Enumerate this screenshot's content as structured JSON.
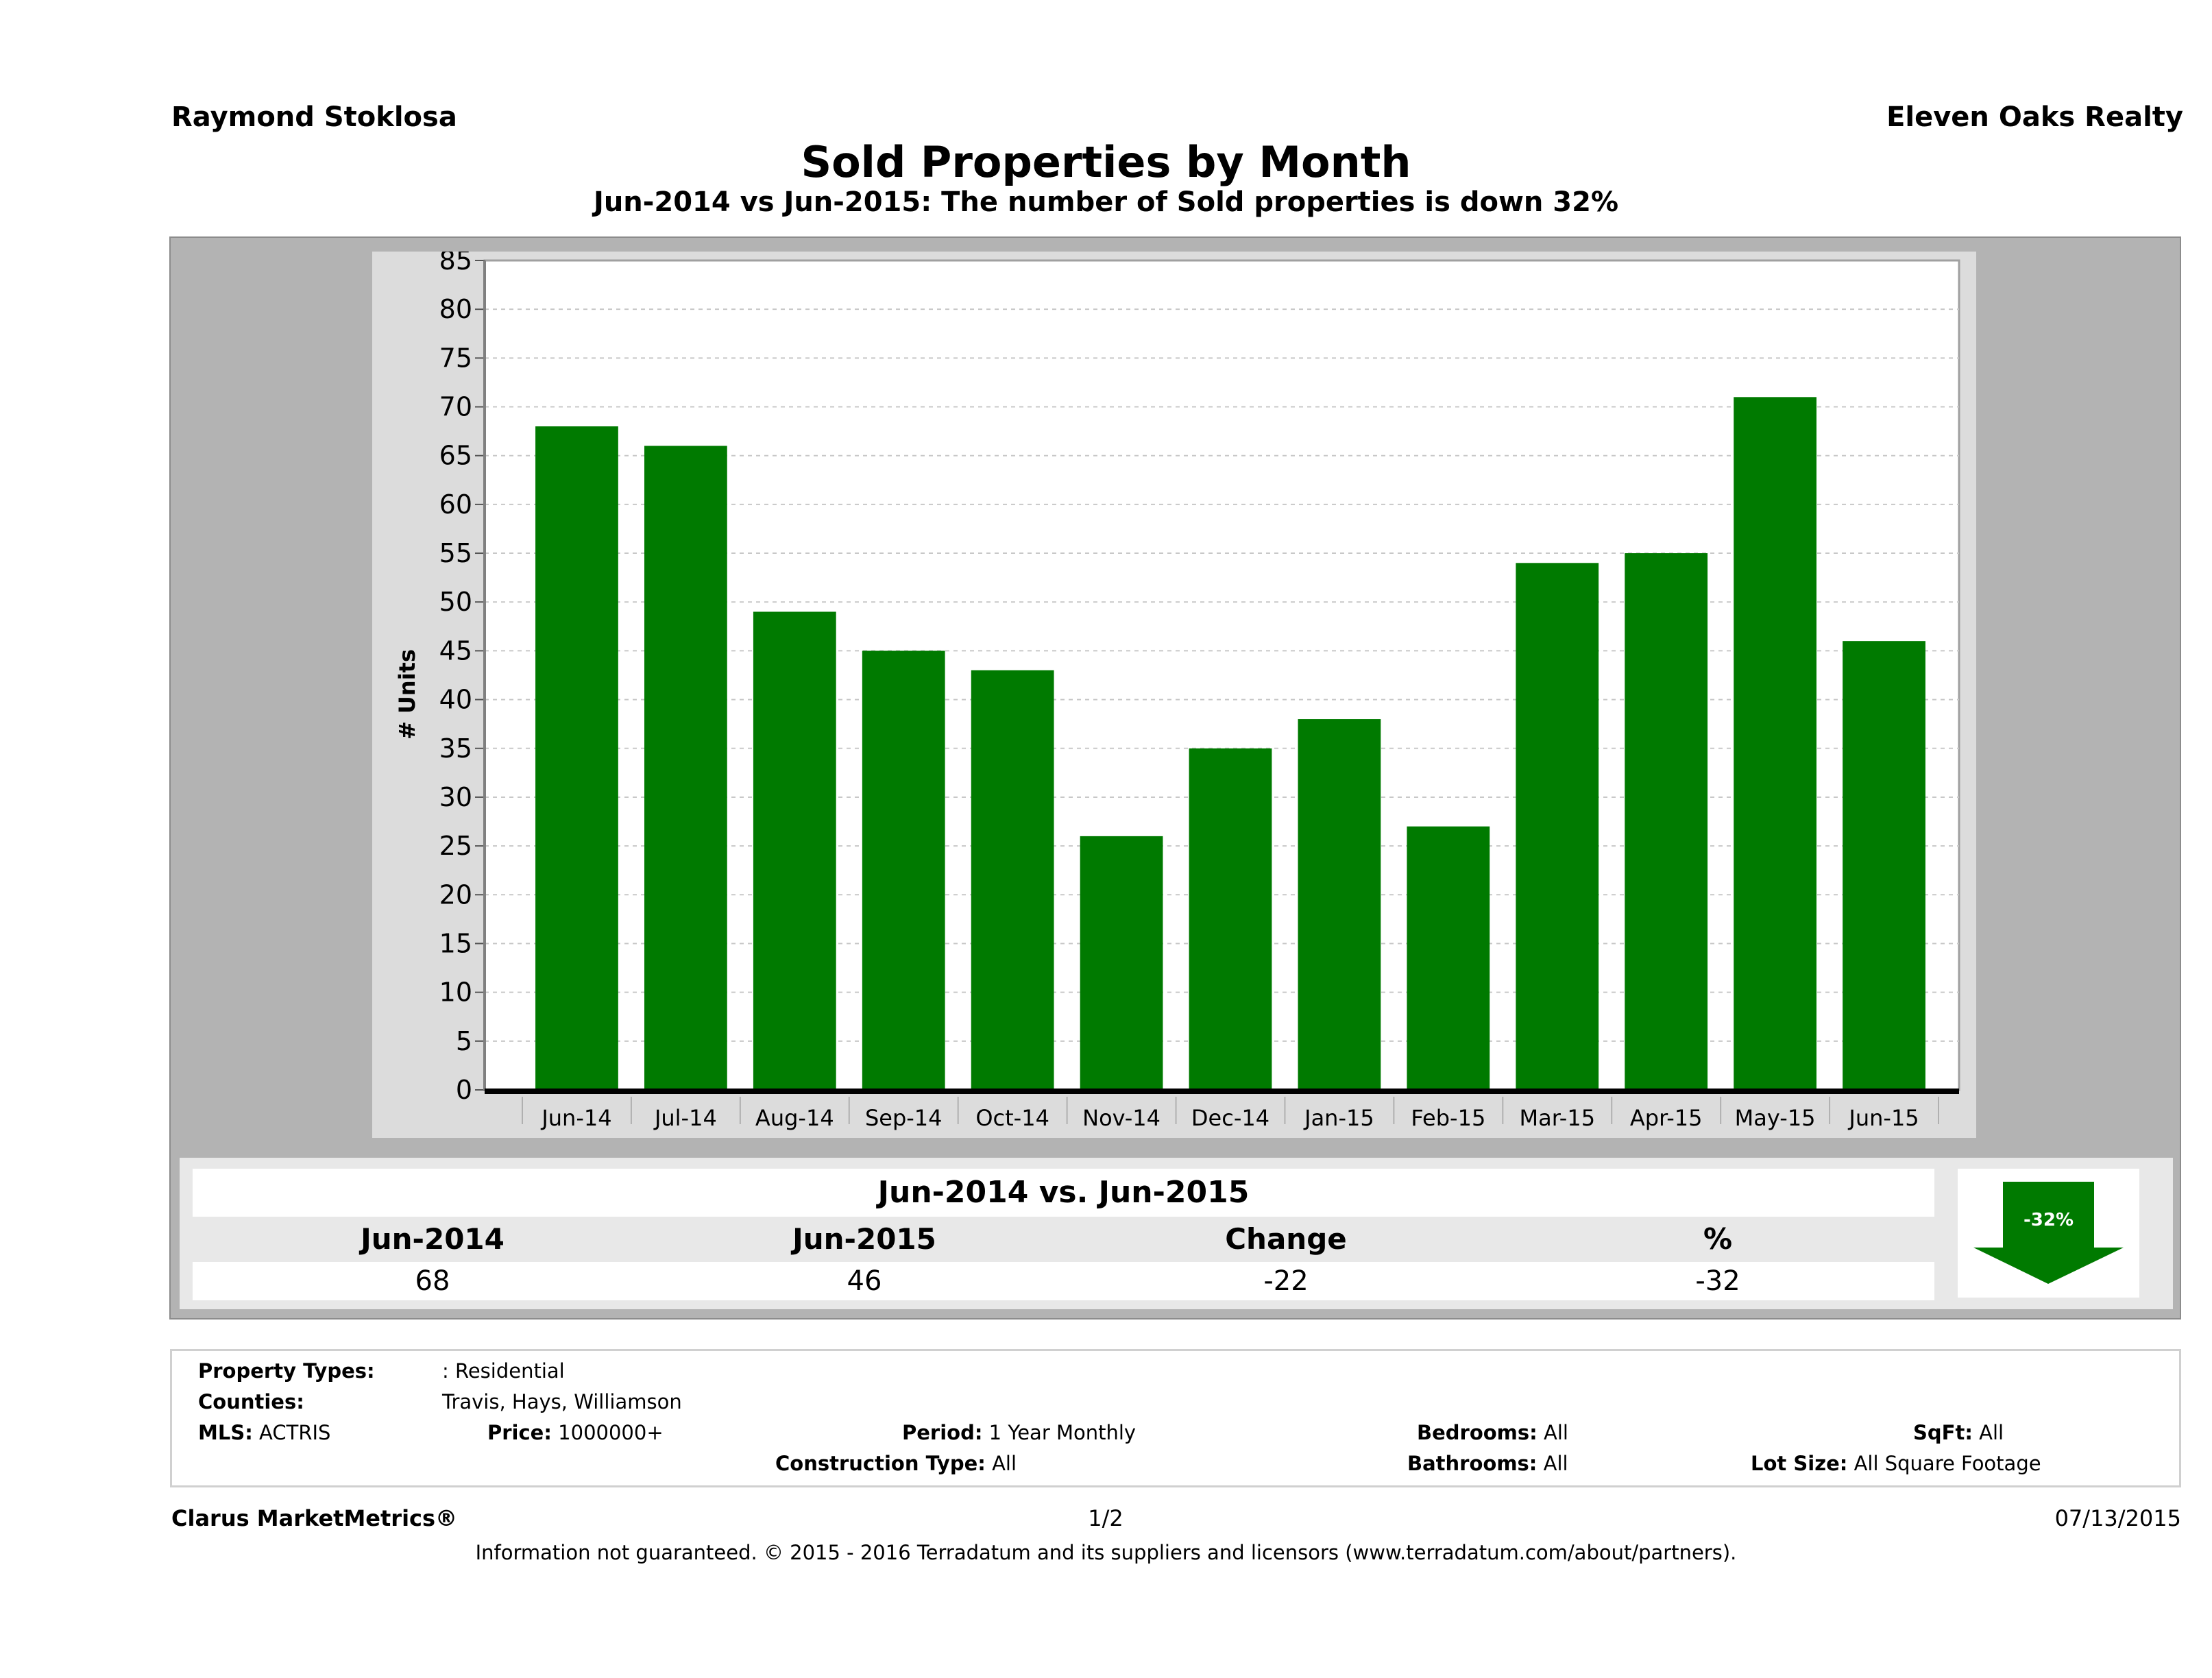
{
  "header": {
    "agent_name": "Raymond Stoklosa",
    "company": "Eleven Oaks Realty",
    "title": "Sold Properties by Month",
    "subtitle": "Jun-2014 vs Jun-2015: The number of Sold  properties is down 32%"
  },
  "chart_data": {
    "type": "bar",
    "title": "Sold Properties by Month",
    "xlabel": "",
    "ylabel": "# Units",
    "ylim": [
      0,
      85
    ],
    "yticks": [
      0,
      5,
      10,
      15,
      20,
      25,
      30,
      35,
      40,
      45,
      50,
      55,
      60,
      65,
      70,
      75,
      80,
      85
    ],
    "grid": true,
    "categories": [
      "Jun-14",
      "Jul-14",
      "Aug-14",
      "Sep-14",
      "Oct-14",
      "Nov-14",
      "Dec-14",
      "Jan-15",
      "Feb-15",
      "Mar-15",
      "Apr-15",
      "May-15",
      "Jun-15"
    ],
    "values": [
      68,
      66,
      49,
      45,
      43,
      26,
      35,
      38,
      27,
      54,
      55,
      71,
      46
    ],
    "bar_color": "#007a00"
  },
  "summary": {
    "title": "Jun-2014 vs. Jun-2015",
    "headers": [
      "Jun-2014",
      "Jun-2015",
      "Change",
      "%"
    ],
    "values": [
      "68",
      "46",
      "-22",
      "-32"
    ],
    "badge": {
      "icon": "down-arrow-icon",
      "label": "-32%",
      "color": "#007a00"
    }
  },
  "filters": {
    "property_types_label": "Property Types:",
    "property_types_value": ": Residential",
    "counties_label": "Counties:",
    "counties_value": "Travis, Hays, Williamson",
    "mls_label": "MLS:",
    "mls_value": "ACTRIS",
    "price_label": "Price:",
    "price_value": "1000000+",
    "period_label": "Period:",
    "period_value": "1 Year Monthly",
    "construction_label": "Construction Type:",
    "construction_value": "All",
    "bedrooms_label": "Bedrooms:",
    "bedrooms_value": "All",
    "bathrooms_label": "Bathrooms:",
    "bathrooms_value": "All",
    "sqft_label": "SqFt:",
    "sqft_value": "All",
    "lot_label": "Lot Size:",
    "lot_value": "All Square Footage"
  },
  "footer": {
    "brand": "Clarus MarketMetrics®",
    "page": "1/2",
    "date": "07/13/2015",
    "disclaimer": "Information not guaranteed. © 2015 - 2016 Terradatum and its suppliers and licensors (www.terradatum.com/about/partners)."
  }
}
